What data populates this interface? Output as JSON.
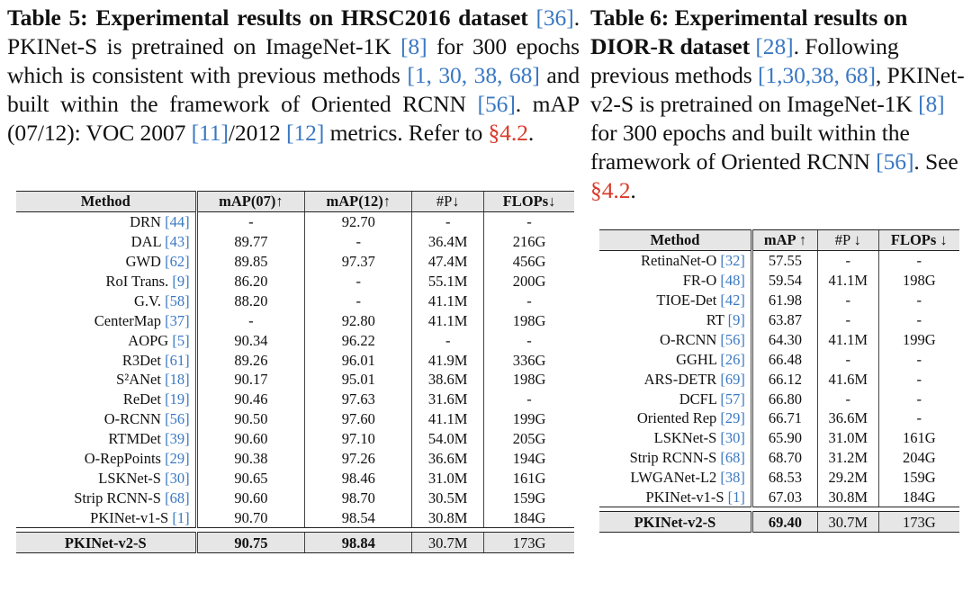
{
  "table5": {
    "caption": {
      "label": "Table 5:",
      "title": " Experimental results on HRSC2016 dataset",
      "ref_dataset": "[36]",
      "t1": ". PKINet-S is pretrained on ImageNet-1K ",
      "ref_imagenet": "[8]",
      "t2": " for 300 epochs which is consistent with previous methods ",
      "ref_methods": "[1, 30, 38, 68]",
      "t3": " and built within the framework of Oriented RCNN ",
      "ref_orcnn": "[56]",
      "t4": ". mAP (07/12): VOC 2007 ",
      "ref_voc07": "[11]",
      "t5": "/2012 ",
      "ref_voc12": "[12]",
      "t6": " metrics. Refer to ",
      "section": "§4.2",
      "t7": "."
    },
    "headers": [
      "Method",
      "mAP(07)↑",
      "mAP(12)↑",
      "#P↓",
      "FLOPs↓"
    ],
    "rows": [
      {
        "method": "DRN ",
        "ref": "[44]",
        "c1": "-",
        "c2": "92.70",
        "c3": "-",
        "c4": "-"
      },
      {
        "method": "DAL ",
        "ref": "[43]",
        "c1": "89.77",
        "c2": "-",
        "c3": "36.4M",
        "c4": "216G"
      },
      {
        "method": "GWD ",
        "ref": "[62]",
        "c1": "89.85",
        "c2": "97.37",
        "c3": "47.4M",
        "c4": "456G"
      },
      {
        "method": "RoI Trans. ",
        "ref": "[9]",
        "c1": "86.20",
        "c2": "-",
        "c3": "55.1M",
        "c4": "200G"
      },
      {
        "method": "G.V. ",
        "ref": "[58]",
        "c1": "88.20",
        "c2": "-",
        "c3": "41.1M",
        "c4": "-"
      },
      {
        "method": "CenterMap ",
        "ref": "[37]",
        "c1": "-",
        "c2": "92.80",
        "c3": "41.1M",
        "c4": "198G"
      },
      {
        "method": "AOPG ",
        "ref": "[5]",
        "c1": "90.34",
        "c2": "96.22",
        "c3": "-",
        "c4": "-"
      },
      {
        "method": "R3Det ",
        "ref": "[61]",
        "c1": "89.26",
        "c2": "96.01",
        "c3": "41.9M",
        "c4": "336G"
      },
      {
        "method": "S²ANet ",
        "ref": "[18]",
        "c1": "90.17",
        "c2": "95.01",
        "c3": "38.6M",
        "c4": "198G"
      },
      {
        "method": "ReDet ",
        "ref": "[19]",
        "c1": "90.46",
        "c2": "97.63",
        "c3": "31.6M",
        "c4": "-"
      },
      {
        "method": "O-RCNN ",
        "ref": "[56]",
        "c1": "90.50",
        "c2": "97.60",
        "c3": "41.1M",
        "c4": "199G"
      },
      {
        "method": "RTMDet ",
        "ref": "[39]",
        "c1": "90.60",
        "c2": "97.10",
        "c3": "54.0M",
        "c4": "205G"
      },
      {
        "method": "O-RepPoints ",
        "ref": "[29]",
        "c1": "90.38",
        "c2": "97.26",
        "c3": "36.6M",
        "c4": "194G"
      },
      {
        "method": "LSKNet-S ",
        "ref": "[30]",
        "c1": "90.65",
        "c2": "98.46",
        "c3": "31.0M",
        "c4": "161G"
      },
      {
        "method": "Strip RCNN-S ",
        "ref": "[68]",
        "c1": "90.60",
        "c2": "98.70",
        "c3": "30.5M",
        "c4": "159G"
      },
      {
        "method": "PKINet-v1-S ",
        "ref": "[1]",
        "c1": "90.70",
        "c2": "98.54",
        "c3": "30.8M",
        "c4": "184G"
      }
    ],
    "ours": {
      "method": "PKINet-v2-S",
      "c1": "90.75",
      "c2": "98.84",
      "c3": "30.7M",
      "c4": "173G"
    }
  },
  "table6": {
    "caption": {
      "label": "Table 6:",
      "title": " Experimental results on DIOR-R dataset",
      "ref_dataset": "[28]",
      "t1": ". Following previous methods ",
      "ref_methods": "[1,30,38, 68]",
      "t2": ", PKINet-v2-S is pretrained on ImageNet-1K ",
      "ref_imagenet": "[8]",
      "t3": " for 300 epochs and built within the framework of Oriented RCNN ",
      "ref_orcnn": "[56]",
      "t4": ". See ",
      "section": "§4.2",
      "t5": "."
    },
    "headers": [
      "Method",
      "mAP ↑",
      "#P ↓",
      "FLOPs ↓"
    ],
    "rows": [
      {
        "method": "RetinaNet-O ",
        "ref": "[32]",
        "c1": "57.55",
        "c2": "-",
        "c3": "-"
      },
      {
        "method": "FR-O ",
        "ref": "[48]",
        "c1": "59.54",
        "c2": "41.1M",
        "c3": "198G"
      },
      {
        "method": "TIOE-Det ",
        "ref": "[42]",
        "c1": "61.98",
        "c2": "-",
        "c3": "-"
      },
      {
        "method": "RT ",
        "ref": "[9]",
        "c1": "63.87",
        "c2": "-",
        "c3": "-"
      },
      {
        "method": "O-RCNN ",
        "ref": "[56]",
        "c1": "64.30",
        "c2": "41.1M",
        "c3": "199G"
      },
      {
        "method": "GGHL ",
        "ref": "[26]",
        "c1": "66.48",
        "c2": "-",
        "c3": "-"
      },
      {
        "method": "ARS-DETR ",
        "ref": "[69]",
        "c1": "66.12",
        "c2": "41.6M",
        "c3": "-"
      },
      {
        "method": "DCFL ",
        "ref": "[57]",
        "c1": "66.80",
        "c2": "-",
        "c3": "-"
      },
      {
        "method": "Oriented Rep ",
        "ref": "[29]",
        "c1": "66.71",
        "c2": "36.6M",
        "c3": "-"
      },
      {
        "method": "LSKNet-S ",
        "ref": "[30]",
        "c1": "65.90",
        "c2": "31.0M",
        "c3": "161G"
      },
      {
        "method": "Strip RCNN-S ",
        "ref": "[68]",
        "c1": "68.70",
        "c2": "31.2M",
        "c3": "204G"
      },
      {
        "method": "LWGANet-L2 ",
        "ref": "[38]",
        "c1": "68.53",
        "c2": "29.2M",
        "c3": "159G"
      },
      {
        "method": "PKINet-v1-S ",
        "ref": "[1]",
        "c1": "67.03",
        "c2": "30.8M",
        "c3": "184G"
      }
    ],
    "ours": {
      "method": "PKINet-v2-S",
      "c1": "69.40",
      "c2": "30.7M",
      "c3": "173G"
    }
  }
}
